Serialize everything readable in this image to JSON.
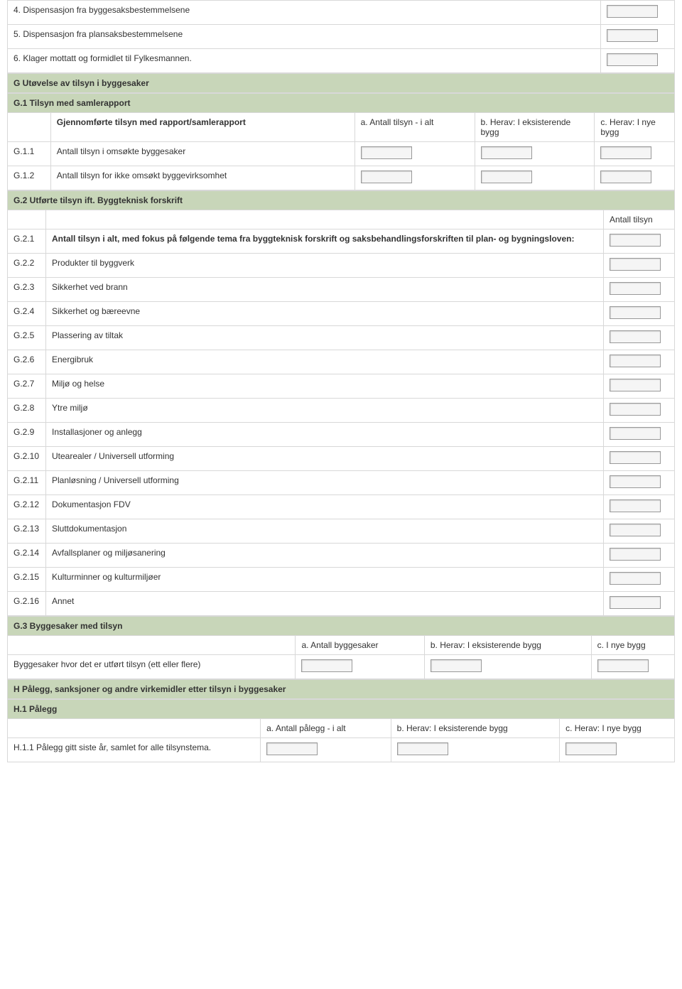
{
  "colors": {
    "section_bg": "#c8d6b9",
    "border": "#d8d8d8",
    "input_bg": "#f5f5f5",
    "input_border": "#999999",
    "text": "#333333"
  },
  "top": [
    {
      "num": "4.",
      "label": "Dispensasjon fra byggesaksbestemmelsene"
    },
    {
      "num": "5.",
      "label": "Dispensasjon fra plansaksbestemmelsene"
    },
    {
      "num": "6.",
      "label": "Klager mottatt og formidlet til Fylkesmannen."
    }
  ],
  "G": {
    "title": "G Utøvelse av tilsyn i byggesaker",
    "G1": {
      "title": "G.1 Tilsyn med samlerapport",
      "row_header": "Gjennomførte tilsyn med rapport/samlerapport",
      "col_a": "a. Antall tilsyn - i alt",
      "col_b": "b. Herav: I eksisterende bygg",
      "col_c": "c. Herav: I nye bygg",
      "rows": [
        {
          "num": "G.1.1",
          "label": "Antall tilsyn i omsøkte byggesaker"
        },
        {
          "num": "G.1.2",
          "label": "Antall tilsyn for ikke omsøkt byggevirksomhet"
        }
      ]
    },
    "G2": {
      "title": "G.2 Utførte tilsyn ift. Byggteknisk forskrift",
      "count_header": "Antall tilsyn",
      "rows": [
        {
          "num": "G.2.1",
          "label": "Antall tilsyn i alt, med fokus på følgende tema fra byggteknisk forskrift og saksbehandlingsforskriften til plan- og bygningsloven:",
          "bold": true
        },
        {
          "num": "G.2.2",
          "label": "Produkter til byggverk"
        },
        {
          "num": "G.2.3",
          "label": "Sikkerhet ved brann"
        },
        {
          "num": "G.2.4",
          "label": "Sikkerhet og bæreevne"
        },
        {
          "num": "G.2.5",
          "label": "Plassering av tiltak"
        },
        {
          "num": "G.2.6",
          "label": "Energibruk"
        },
        {
          "num": "G.2.7",
          "label": "Miljø og helse"
        },
        {
          "num": "G.2.8",
          "label": "Ytre miljø"
        },
        {
          "num": "G.2.9",
          "label": "Installasjoner og anlegg"
        },
        {
          "num": "G.2.10",
          "label": "Utearealer / Universell utforming"
        },
        {
          "num": "G.2.11",
          "label": "Planløsning / Universell utforming"
        },
        {
          "num": "G.2.12",
          "label": "Dokumentasjon FDV"
        },
        {
          "num": "G.2.13",
          "label": "Sluttdokumentasjon"
        },
        {
          "num": "G.2.14",
          "label": "Avfallsplaner og miljøsanering"
        },
        {
          "num": "G.2.15",
          "label": "Kulturminner og kulturmiljøer"
        },
        {
          "num": "G.2.16",
          "label": "Annet"
        }
      ]
    },
    "G3": {
      "title": "G.3 Byggesaker med tilsyn",
      "col_a": "a. Antall byggesaker",
      "col_b": "b. Herav: I eksisterende bygg",
      "col_c": "c. I nye bygg",
      "row_label": "Byggesaker hvor det er utført tilsyn (ett eller flere)"
    }
  },
  "H": {
    "title": "H Pålegg, sanksjoner og andre virkemidler etter tilsyn i byggesaker",
    "H1": {
      "title": "H.1 Pålegg",
      "col_a": "a. Antall pålegg - i alt",
      "col_b": "b. Herav: I eksisterende bygg",
      "col_c": "c. Herav: I nye bygg",
      "rows": [
        {
          "num": "H.1.1",
          "label": "Pålegg gitt siste år, samlet for alle tilsynstema."
        }
      ]
    }
  }
}
